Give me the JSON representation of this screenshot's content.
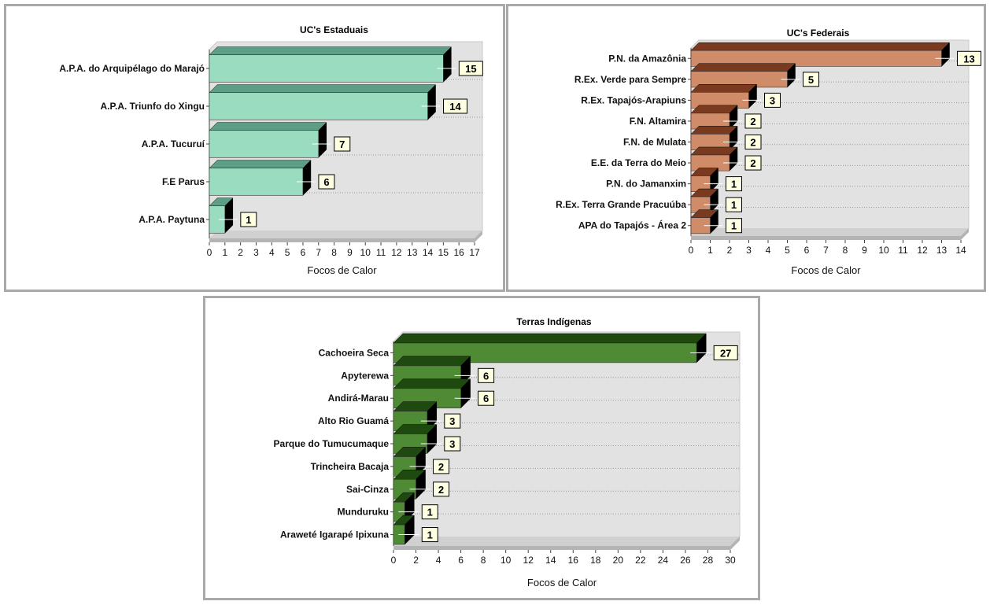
{
  "chart_data": [
    {
      "type": "bar",
      "orientation": "horizontal",
      "title": "UC's Estaduais",
      "xlabel": "Focos de Calor",
      "ylabel": "",
      "categories": [
        "A.P.A. do Arquipélago do Marajó",
        "A.P.A. Triunfo do Xingu",
        "A.P.A. Tucuruí",
        "F.E Parus",
        "A.P.A. Paytuna"
      ],
      "values": [
        15,
        14,
        7,
        6,
        1
      ],
      "xlim": [
        0,
        17
      ],
      "x_ticks": [
        0,
        1,
        2,
        3,
        4,
        5,
        6,
        7,
        8,
        9,
        10,
        11,
        12,
        13,
        14,
        15,
        16,
        17
      ],
      "bar_color": "#99dcc0",
      "bar_top_color": "#5e9e86",
      "grid": true,
      "data_labels": true
    },
    {
      "type": "bar",
      "orientation": "horizontal",
      "title": "UC's Federais",
      "xlabel": "Focos de Calor",
      "ylabel": "",
      "categories": [
        "P.N. da Amazônia",
        "R.Ex. Verde para Sempre",
        "R.Ex. Tapajós-Arapiuns",
        "F.N. Altamira",
        "F.N. de Mulata",
        "E.E. da Terra do Meio",
        "P.N. do Jamanxim",
        "R.Ex. Terra Grande Pracuúba",
        "APA do Tapajós - Área 2"
      ],
      "values": [
        13,
        5,
        3,
        2,
        2,
        2,
        1,
        1,
        1
      ],
      "xlim": [
        0,
        14
      ],
      "x_ticks": [
        0,
        1,
        2,
        3,
        4,
        5,
        6,
        7,
        8,
        9,
        10,
        11,
        12,
        13,
        14
      ],
      "bar_color": "#d08c68",
      "bar_top_color": "#7a3a20",
      "grid": true,
      "data_labels": true
    },
    {
      "type": "bar",
      "orientation": "horizontal",
      "title": "Terras Indígenas",
      "xlabel": "Focos de Calor",
      "ylabel": "",
      "categories": [
        "Cachoeira Seca",
        "Apyterewa",
        "Andirá-Marau",
        "Alto Rio Guamá",
        "Parque do Tumucumaque",
        "Trincheira Bacaja",
        "Sai-Cinza",
        "Munduruku",
        "Araweté Igarapé Ipixuna"
      ],
      "values": [
        27,
        6,
        6,
        3,
        3,
        2,
        2,
        1,
        1
      ],
      "xlim": [
        0,
        30
      ],
      "x_ticks": [
        0,
        2,
        4,
        6,
        8,
        10,
        12,
        14,
        16,
        18,
        20,
        22,
        24,
        26,
        28,
        30
      ],
      "bar_color": "#4f8a34",
      "bar_top_color": "#1e4a10",
      "grid": true,
      "data_labels": true
    }
  ]
}
